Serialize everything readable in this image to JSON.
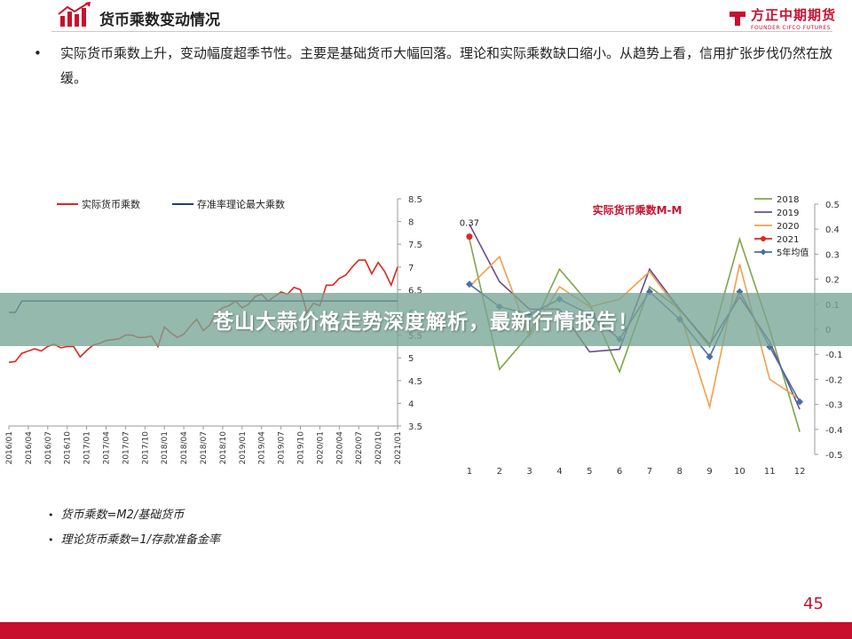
{
  "slide": {
    "title": "货币乘数变动情况",
    "bullet": "实际货币乘数上升，变动幅度超季节性。主要是基础货币大幅回落。理论和实际乘数缺口缩小。从趋势上看，信用扩张步伐仍然在放缓。",
    "notes": [
      "货币乘数=M2/基础货币",
      "理论货币乘数=1/存款准备金率"
    ],
    "page_number": "45",
    "overlay_banner": "苍山大蒜价格走势深度解析，最新行情报告！"
  },
  "brand": {
    "name_cn": "方正中期期货",
    "name_en": "FOUNDER CIFCO FUTURES",
    "color": "#c8102e"
  },
  "chart_data": [
    {
      "type": "line",
      "x": [
        "2016/01",
        "2016/02",
        "2016/03",
        "2016/04",
        "2016/05",
        "2016/06",
        "2016/07",
        "2016/08",
        "2016/09",
        "2016/10",
        "2016/11",
        "2016/12",
        "2017/01",
        "2017/02",
        "2017/03",
        "2017/04",
        "2017/05",
        "2017/06",
        "2017/07",
        "2017/08",
        "2017/09",
        "2017/10",
        "2017/11",
        "2017/12",
        "2018/01",
        "2018/02",
        "2018/03",
        "2018/04",
        "2018/05",
        "2018/06",
        "2018/07",
        "2018/08",
        "2018/09",
        "2018/10",
        "2018/11",
        "2018/12",
        "2019/01",
        "2019/02",
        "2019/03",
        "2019/04",
        "2019/05",
        "2019/06",
        "2019/07",
        "2019/08",
        "2019/09",
        "2019/10",
        "2019/11",
        "2019/12",
        "2020/01",
        "2020/02",
        "2020/03",
        "2020/04",
        "2020/05",
        "2020/06",
        "2020/07",
        "2020/08",
        "2020/09",
        "2020/10",
        "2020/11",
        "2020/12",
        "2021/01"
      ],
      "x_tick_labels": [
        "2016/01",
        "2016/04",
        "2016/07",
        "2016/10",
        "2017/01",
        "2017/04",
        "2017/07",
        "2017/10",
        "2018/01",
        "2018/04",
        "2018/07",
        "2018/10",
        "2019/01",
        "2019/04",
        "2019/07",
        "2019/10",
        "2020/01",
        "2020/04",
        "2020/07",
        "2020/10",
        "2021/01"
      ],
      "series": [
        {
          "name": "实际货币乘数",
          "color": "#e0261b",
          "values": [
            4.9,
            4.92,
            5.1,
            5.15,
            5.2,
            5.15,
            5.25,
            5.3,
            5.22,
            5.25,
            5.25,
            5.02,
            5.16,
            5.28,
            5.32,
            5.38,
            5.4,
            5.42,
            5.5,
            5.5,
            5.45,
            5.45,
            5.48,
            5.25,
            5.68,
            5.55,
            5.45,
            5.52,
            5.7,
            5.85,
            5.6,
            5.72,
            6.0,
            6.1,
            6.15,
            6.25,
            6.1,
            6.18,
            6.35,
            6.4,
            6.25,
            6.35,
            6.45,
            6.4,
            6.55,
            6.5,
            6.0,
            6.2,
            6.15,
            6.6,
            6.6,
            6.75,
            6.82,
            7.0,
            7.15,
            7.15,
            6.85,
            7.1,
            6.9,
            6.6,
            7.0
          ]
        },
        {
          "name": "存准率理论最大乘数",
          "color": "#1f3d7a",
          "values": [
            6.0,
            6.0,
            6.25,
            6.25,
            6.25,
            6.25,
            6.25,
            6.25,
            6.25,
            6.25,
            6.25,
            6.25,
            6.25,
            6.25,
            6.25,
            6.25,
            6.25,
            6.25,
            6.25,
            6.25,
            6.25,
            6.25,
            6.25,
            6.25,
            6.25,
            6.25,
            6.25,
            6.25,
            6.25,
            6.25,
            6.25,
            6.25,
            6.25,
            6.25,
            6.25,
            6.25,
            6.25,
            6.25,
            6.25,
            6.25,
            6.25,
            6.25,
            6.25,
            6.25,
            6.25,
            6.25,
            6.25,
            6.25,
            6.25,
            6.25,
            6.25,
            6.25,
            6.25,
            6.25,
            6.25,
            6.25,
            6.25,
            6.25,
            6.25,
            6.25,
            6.25
          ]
        }
      ],
      "ylim": [
        3.5,
        8.5
      ],
      "y_ticks": [
        "3.5",
        "4",
        "4.5",
        "5",
        "5.5",
        "6",
        "6.5",
        "7",
        "7.5",
        "8",
        "8.5"
      ],
      "legend_position": "top"
    },
    {
      "type": "line",
      "title": "实际货币乘数M-M",
      "x": [
        "1",
        "2",
        "3",
        "4",
        "5",
        "6",
        "7",
        "8",
        "9",
        "10",
        "11",
        "12"
      ],
      "series": [
        {
          "name": "2018",
          "color": "#7fa64a",
          "marker": "none",
          "values": [
            0.36,
            -0.16,
            -0.02,
            0.24,
            0.1,
            -0.17,
            0.17,
            0.08,
            -0.07,
            0.36,
            0.0,
            -0.41
          ]
        },
        {
          "name": "2019",
          "color": "#6a4c93",
          "marker": "none",
          "values": [
            0.42,
            0.19,
            0.08,
            0.08,
            -0.09,
            -0.08,
            0.24,
            0.08,
            -0.06,
            0.13,
            -0.05,
            -0.32
          ]
        },
        {
          "name": "2020",
          "color": "#f0a04b",
          "marker": "none",
          "values": [
            0.17,
            0.29,
            -0.03,
            0.17,
            0.09,
            0.12,
            0.23,
            0.07,
            -0.31,
            0.26,
            -0.2,
            -0.28
          ]
        },
        {
          "name": "2021",
          "color": "#e0261b",
          "marker": "circle",
          "values": [
            0.37,
            null,
            null,
            null,
            null,
            null,
            null,
            null,
            null,
            null,
            null,
            null
          ]
        },
        {
          "name": "5年均值",
          "color": "#4a6fa5",
          "marker": "diamond",
          "values": [
            0.18,
            0.09,
            0.06,
            0.12,
            0.06,
            -0.04,
            0.15,
            0.04,
            -0.11,
            0.15,
            -0.07,
            -0.29
          ]
        }
      ],
      "data_labels": [
        "0.37"
      ],
      "ylim": [
        -0.5,
        0.5
      ],
      "y_ticks": [
        "-0.5",
        "-0.4",
        "-0.3",
        "-0.2",
        "-0.1",
        "0",
        "0.1",
        "0.2",
        "0.3",
        "0.4",
        "0.5"
      ],
      "legend_position": "top-right"
    }
  ]
}
